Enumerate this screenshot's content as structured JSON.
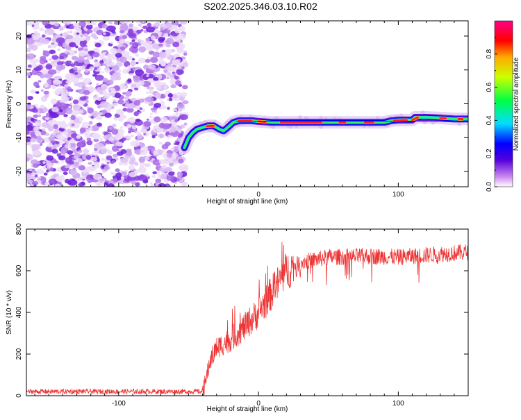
{
  "title": "S202.2025.346.03.10.R02",
  "chart_data": [
    {
      "type": "heatmap",
      "xlabel": "Height of straight line (km)",
      "ylabel": "Frequency (Hz)",
      "xlim": [
        -166,
        150
      ],
      "ylim": [
        -24.5,
        24.5
      ],
      "xticks": [
        -100,
        0,
        100
      ],
      "yticks": [
        -20,
        -10,
        0,
        10,
        20
      ],
      "noise_region_x": [
        -166,
        -52
      ],
      "ridge": {
        "x": [
          -53,
          -50,
          -47,
          -44,
          -40,
          -36,
          -32,
          -28,
          -25,
          -22,
          -18,
          -14,
          -10,
          -5,
          0,
          10,
          20,
          30,
          40,
          50,
          60,
          70,
          80,
          90,
          95,
          100,
          110,
          112,
          120,
          130,
          140,
          150
        ],
        "y": [
          -13,
          -10,
          -8.5,
          -7.5,
          -7,
          -6.5,
          -6.5,
          -7.5,
          -8,
          -7,
          -5.5,
          -5,
          -5,
          -5,
          -5.2,
          -5.5,
          -5.5,
          -5.5,
          -5.5,
          -5.5,
          -5.5,
          -5.5,
          -5.5,
          -5.5,
          -5,
          -4.8,
          -4.8,
          -4,
          -4,
          -4.2,
          -4.5,
          -4.5
        ]
      },
      "colorbar": {
        "label": "Normalized spectral amplitude",
        "range": [
          0,
          1
        ],
        "ticks": [
          "0.0",
          "0.2",
          "0.4",
          "0.6",
          "0.8"
        ]
      }
    },
    {
      "type": "line",
      "xlabel": "Height of straight line (km)",
      "ylabel": "SNR (10 * v/v)",
      "xlim": [
        -166,
        150
      ],
      "ylim": [
        0,
        800
      ],
      "xticks": [
        -100,
        0,
        100
      ],
      "yticks": [
        0,
        200,
        400,
        600,
        800
      ],
      "color": "#ee3333",
      "profile": {
        "x": [
          -166,
          -40,
          -38,
          -35,
          -30,
          -20,
          -10,
          0,
          10,
          20,
          30,
          50,
          80,
          100,
          120,
          150
        ],
        "y": [
          20,
          20,
          60,
          160,
          230,
          270,
          330,
          400,
          500,
          600,
          640,
          665,
          670,
          665,
          675,
          690
        ]
      }
    }
  ]
}
